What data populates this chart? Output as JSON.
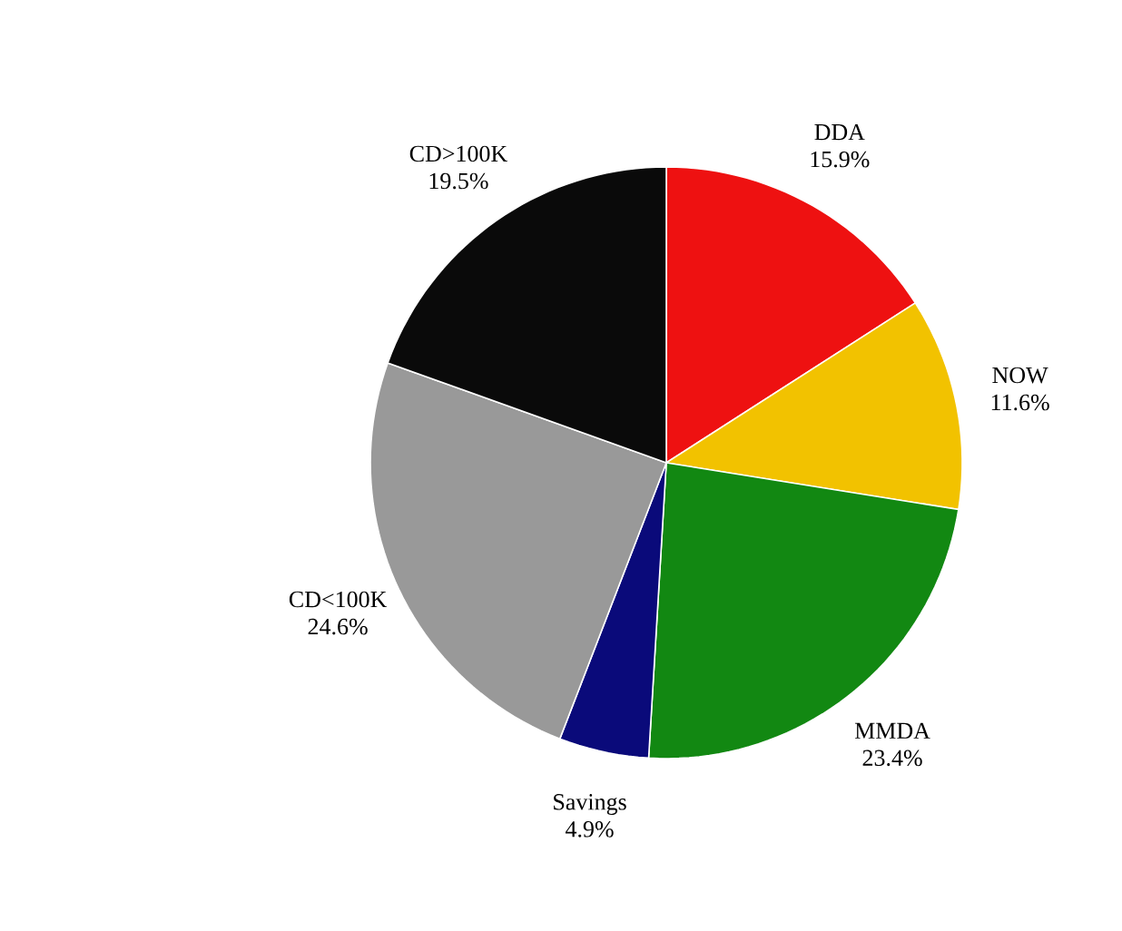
{
  "chart_data": {
    "type": "pie",
    "categories": [
      "DDA",
      "NOW",
      "MMDA",
      "Savings",
      "CD<100K",
      "CD>100K"
    ],
    "values": [
      15.9,
      11.6,
      23.4,
      4.9,
      24.6,
      19.5
    ],
    "value_labels": [
      "15.9%",
      "11.6%",
      "23.4%",
      "4.9%",
      "24.6%",
      "19.5%"
    ],
    "colors": [
      "#ee1111",
      "#f2c200",
      "#128812",
      "#0a0a7a",
      "#999999",
      "#0a0a0a"
    ]
  }
}
